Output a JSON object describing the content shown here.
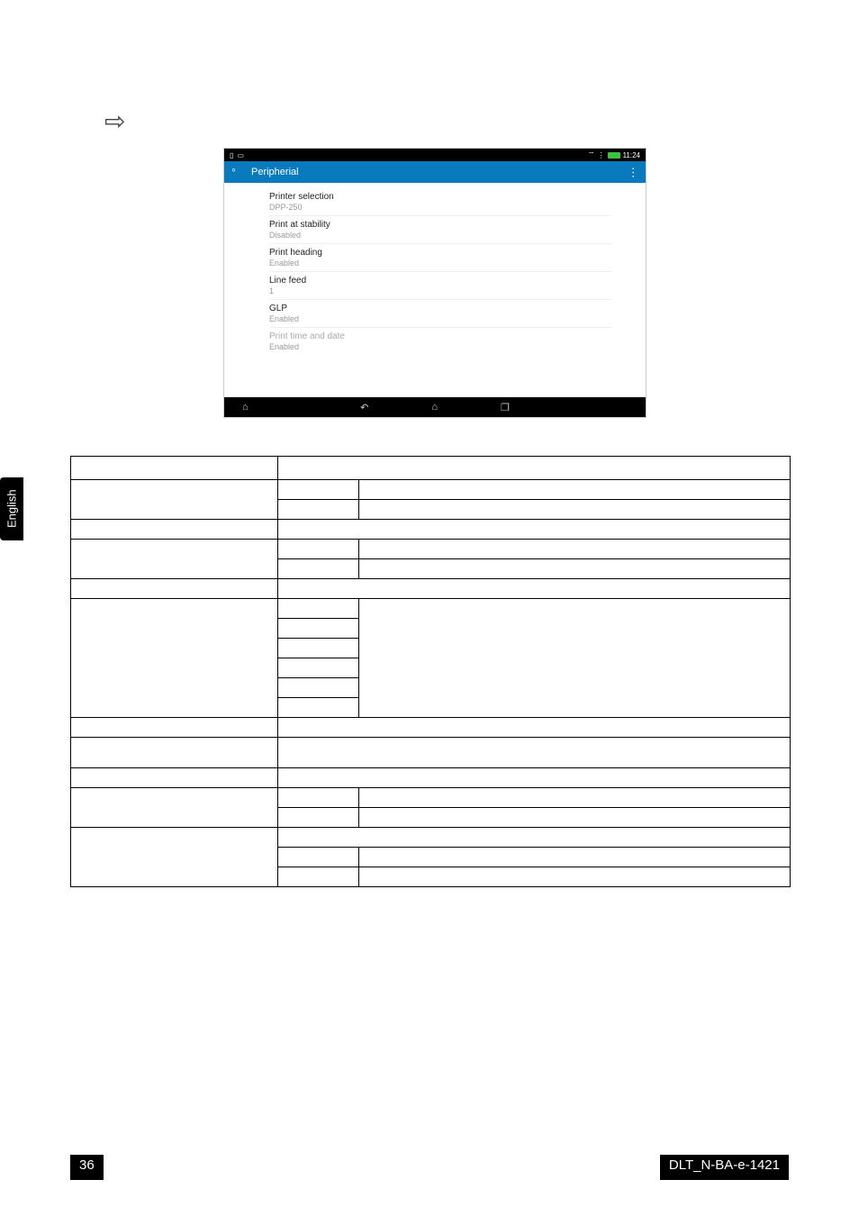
{
  "page": {
    "number": "36",
    "doc_id": "DLT_N-BA-e-1421",
    "language_tab": "English"
  },
  "screenshot": {
    "status_time": "11:24",
    "header_title": "Peripherial",
    "items": [
      {
        "title": "Printer selection",
        "sub": "DPP-250",
        "disabled": false
      },
      {
        "title": "Print at stability",
        "sub": "Disabled",
        "disabled": false
      },
      {
        "title": "Print heading",
        "sub": "Enabled",
        "disabled": false
      },
      {
        "title": "Line feed",
        "sub": "1",
        "disabled": false
      },
      {
        "title": "GLP",
        "sub": "Enabled",
        "disabled": false
      },
      {
        "title": "Print time and date",
        "sub": "Enabled",
        "disabled": true
      }
    ]
  },
  "table": {
    "colors": {
      "border": "#000000",
      "bg": "#ffffff"
    }
  }
}
